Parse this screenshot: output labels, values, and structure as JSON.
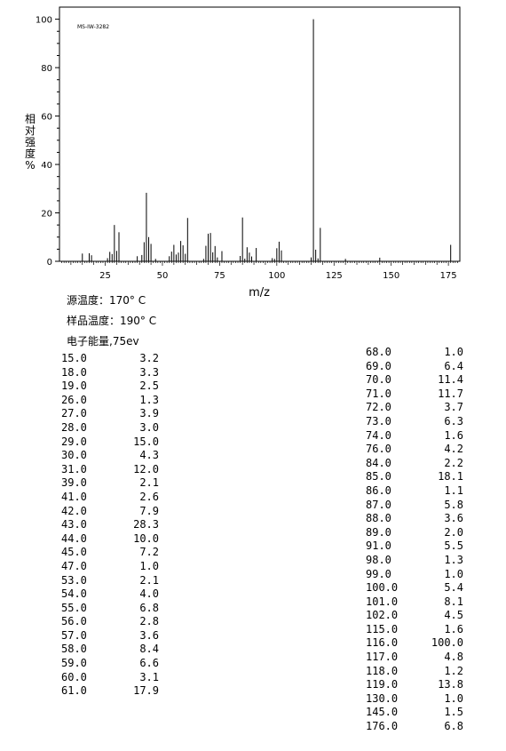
{
  "chart_data": {
    "type": "bar",
    "title": "MS-IW-3282",
    "xlabel": "m/z",
    "ylabel": "相对强度%",
    "xlim": [
      5,
      180
    ],
    "ylim": [
      0,
      105
    ],
    "xticks": [
      25,
      50,
      75,
      100,
      125,
      150,
      175
    ],
    "yticks": [
      0,
      20,
      40,
      60,
      80,
      100
    ],
    "x": [
      15,
      18,
      19,
      26,
      27,
      28,
      29,
      30,
      31,
      39,
      41,
      42,
      43,
      44,
      45,
      47,
      53,
      54,
      55,
      56,
      57,
      58,
      59,
      60,
      61,
      68,
      69,
      70,
      71,
      72,
      73,
      74,
      76,
      84,
      85,
      86,
      87,
      88,
      89,
      91,
      98,
      99,
      100,
      101,
      102,
      115,
      116,
      117,
      118,
      119,
      130,
      145,
      176
    ],
    "values": [
      3.2,
      3.3,
      2.5,
      1.3,
      3.9,
      3.0,
      15.0,
      4.3,
      12.0,
      2.1,
      2.6,
      7.9,
      28.3,
      10.0,
      7.2,
      1.0,
      2.1,
      4.0,
      6.8,
      2.8,
      3.6,
      8.4,
      6.6,
      3.1,
      17.9,
      1.0,
      6.4,
      11.4,
      11.7,
      3.7,
      6.3,
      1.6,
      4.2,
      2.2,
      18.1,
      1.1,
      5.8,
      3.6,
      2.0,
      5.5,
      1.3,
      1.0,
      5.4,
      8.1,
      4.5,
      1.6,
      100.0,
      4.8,
      1.2,
      13.8,
      1.0,
      1.5,
      6.8
    ],
    "grid": false
  },
  "conditions": {
    "source_temp": "源温度：170° C",
    "sample_temp": "样品温度：190° C",
    "energy": "电子能量,75ev"
  },
  "peaks_left": [
    {
      "mz": "15.0",
      "ab": "3.2"
    },
    {
      "mz": "18.0",
      "ab": "3.3"
    },
    {
      "mz": "19.0",
      "ab": "2.5"
    },
    {
      "mz": "26.0",
      "ab": "1.3"
    },
    {
      "mz": "27.0",
      "ab": "3.9"
    },
    {
      "mz": "28.0",
      "ab": "3.0"
    },
    {
      "mz": "29.0",
      "ab": "15.0"
    },
    {
      "mz": "30.0",
      "ab": "4.3"
    },
    {
      "mz": "31.0",
      "ab": "12.0"
    },
    {
      "mz": "39.0",
      "ab": "2.1"
    },
    {
      "mz": "41.0",
      "ab": "2.6"
    },
    {
      "mz": "42.0",
      "ab": "7.9"
    },
    {
      "mz": "43.0",
      "ab": "28.3"
    },
    {
      "mz": "44.0",
      "ab": "10.0"
    },
    {
      "mz": "45.0",
      "ab": "7.2"
    },
    {
      "mz": "47.0",
      "ab": "1.0"
    },
    {
      "mz": "53.0",
      "ab": "2.1"
    },
    {
      "mz": "54.0",
      "ab": "4.0"
    },
    {
      "mz": "55.0",
      "ab": "6.8"
    },
    {
      "mz": "56.0",
      "ab": "2.8"
    },
    {
      "mz": "57.0",
      "ab": "3.6"
    },
    {
      "mz": "58.0",
      "ab": "8.4"
    },
    {
      "mz": "59.0",
      "ab": "6.6"
    },
    {
      "mz": "60.0",
      "ab": "3.1"
    },
    {
      "mz": "61.0",
      "ab": "17.9"
    }
  ],
  "peaks_right": [
    {
      "mz": "68.0",
      "ab": "1.0"
    },
    {
      "mz": "69.0",
      "ab": "6.4"
    },
    {
      "mz": "70.0",
      "ab": "11.4"
    },
    {
      "mz": "71.0",
      "ab": "11.7"
    },
    {
      "mz": "72.0",
      "ab": "3.7"
    },
    {
      "mz": "73.0",
      "ab": "6.3"
    },
    {
      "mz": "74.0",
      "ab": "1.6"
    },
    {
      "mz": "76.0",
      "ab": "4.2"
    },
    {
      "mz": "84.0",
      "ab": "2.2"
    },
    {
      "mz": "85.0",
      "ab": "18.1"
    },
    {
      "mz": "86.0",
      "ab": "1.1"
    },
    {
      "mz": "87.0",
      "ab": "5.8"
    },
    {
      "mz": "88.0",
      "ab": "3.6"
    },
    {
      "mz": "89.0",
      "ab": "2.0"
    },
    {
      "mz": "91.0",
      "ab": "5.5"
    },
    {
      "mz": "98.0",
      "ab": "1.3"
    },
    {
      "mz": "99.0",
      "ab": "1.0"
    },
    {
      "mz": "100.0",
      "ab": "5.4"
    },
    {
      "mz": "101.0",
      "ab": "8.1"
    },
    {
      "mz": "102.0",
      "ab": "4.5"
    },
    {
      "mz": "115.0",
      "ab": "1.6"
    },
    {
      "mz": "116.0",
      "ab": "100.0"
    },
    {
      "mz": "117.0",
      "ab": "4.8"
    },
    {
      "mz": "118.0",
      "ab": "1.2"
    },
    {
      "mz": "119.0",
      "ab": "13.8"
    },
    {
      "mz": "130.0",
      "ab": "1.0"
    },
    {
      "mz": "145.0",
      "ab": "1.5"
    },
    {
      "mz": "176.0",
      "ab": "6.8"
    }
  ]
}
